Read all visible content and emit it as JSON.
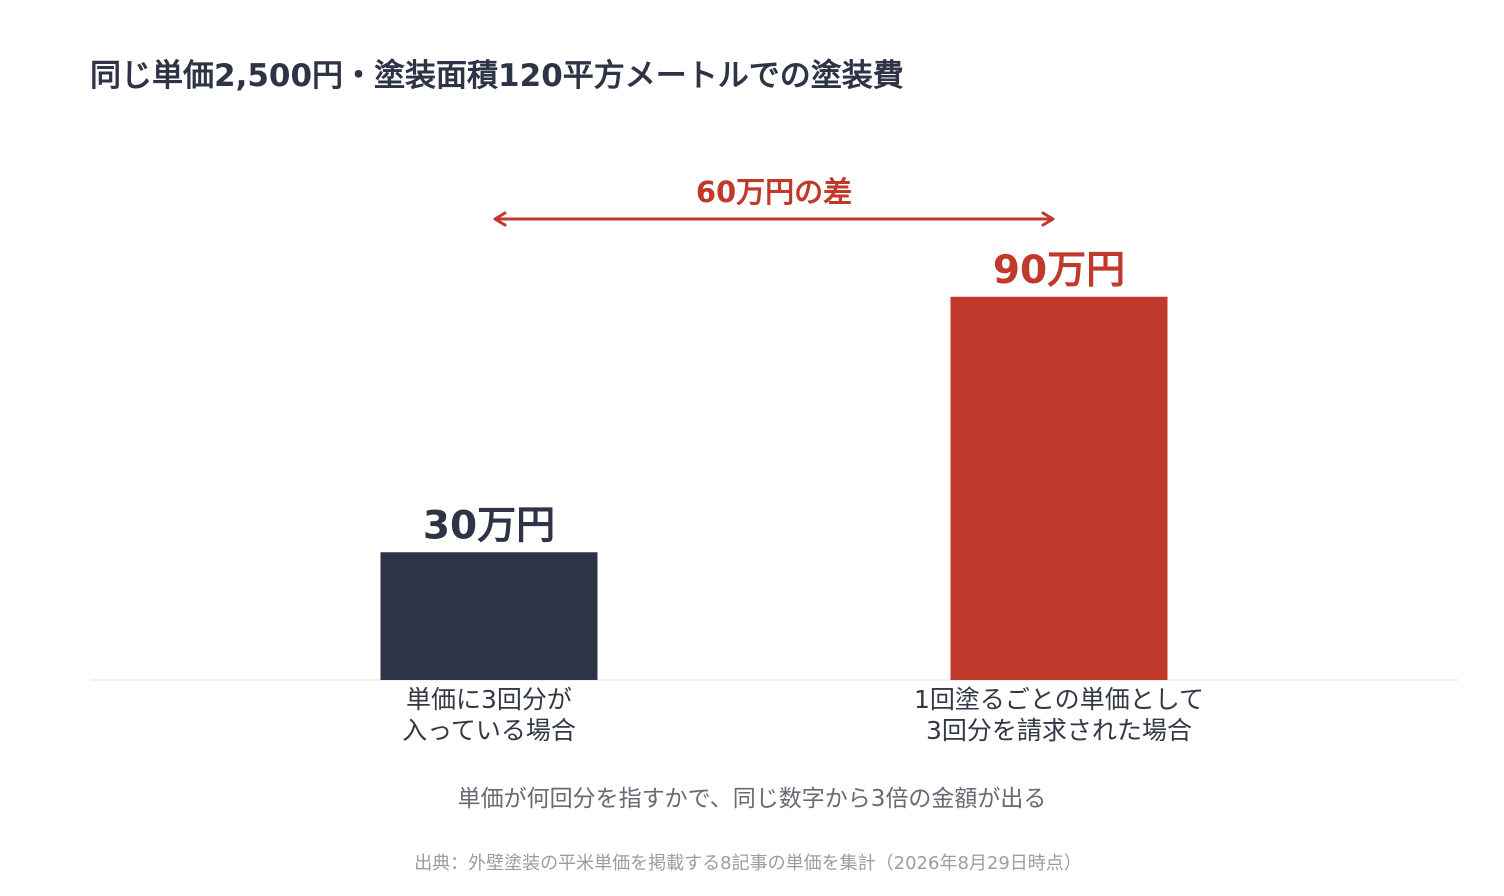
{
  "chart_data": {
    "type": "bar",
    "title": "同じ単価2,500円・塗装面積120平方メートルでの塗装費",
    "categories": [
      [
        "単価に3回分が",
        "入っている場合"
      ],
      [
        "1回塗るごとの単価として",
        "3回分を請求された場合"
      ]
    ],
    "values": [
      30,
      90
    ],
    "value_labels": [
      "30万円",
      "90万円"
    ],
    "unit": "万円",
    "ylim": [
      0,
      120
    ],
    "grid": false,
    "colors": [
      "#2e3446",
      "#c0392b"
    ],
    "annotation": {
      "label": "60万円の差",
      "from_category": 0,
      "to_category": 1,
      "color": "#c0392b"
    },
    "note": "単価が何回分を指すかで、同じ数字から3倍の金額が出る",
    "source": "出典：外壁塗装の平米単価を掲載する8記事の単価を集計（2026年8月29日時点）"
  }
}
